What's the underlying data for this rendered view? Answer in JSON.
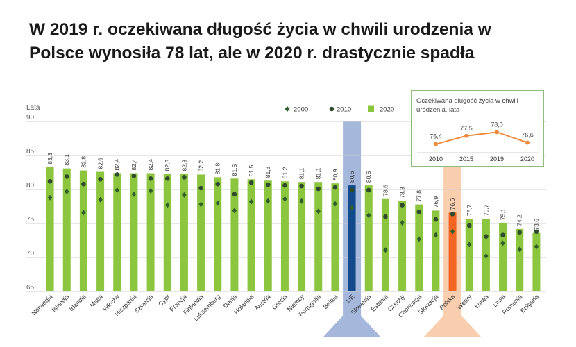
{
  "headline": {
    "line1": "W 2019 r. oczekiwana długość życia w chwili urodzenia w",
    "line2": "Polsce wynosiła 78 lat, ale w 2020 r. drastycznie spadła"
  },
  "colors": {
    "bar": "#8cc63f",
    "bar_eu": "#124a8c",
    "bar_pl": "#f26522",
    "band_eu": "#9bb0d8",
    "band_pl": "#f8c9a6",
    "marker_2000": "#2e5e2a",
    "marker_2010": "#2f4a2c",
    "inset_line": "#f08a3c",
    "inset_border": "#6aa84f"
  },
  "chart_data": [
    {
      "type": "bar",
      "ylabel": "Lata",
      "ylim": [
        65,
        90
      ],
      "yticks": [
        65,
        70,
        75,
        80,
        85,
        90
      ],
      "grid": true,
      "legend": {
        "position": "top-right",
        "items": [
          {
            "label": "2000",
            "marker": "diamond"
          },
          {
            "label": "2010",
            "marker": "circle"
          },
          {
            "label": "2020",
            "marker": "square"
          }
        ]
      },
      "categories": [
        "Norwegia",
        "Islandia",
        "Irlandia",
        "Malta",
        "Włochy",
        "Hiszpania",
        "Szwecja",
        "Cypr",
        "Francja",
        "Finlandia",
        "Luksemburg",
        "Dania",
        "Holandia",
        "Austria",
        "Grecja",
        "Niemcy",
        "Portugalia",
        "Belgia",
        "UE",
        "Słowenia",
        "Estonia",
        "Czechy",
        "Chorwacja",
        "Słowacja",
        "Polska",
        "Węgry",
        "Łotwa",
        "Litwa",
        "Rumunia",
        "Bułgaria"
      ],
      "value_labels": [
        "83,3",
        "83,1",
        "82,8",
        "82,6",
        "82,4",
        "82,4",
        "82,4",
        "82,3",
        "82,3",
        "82,2",
        "81,8",
        "81,6",
        "81,5",
        "81,3",
        "81,2",
        "81,1",
        "81,1",
        "80,9",
        "80,6",
        "80,6",
        "78,6",
        "78,3",
        "77,8",
        "76,9",
        "76,6",
        "75,7",
        "75,7",
        "75,1",
        "74,2",
        "73,6"
      ],
      "series": [
        {
          "name": "2020",
          "marker": "bar",
          "values": [
            83.3,
            83.1,
            82.8,
            82.6,
            82.4,
            82.4,
            82.4,
            82.3,
            82.3,
            82.2,
            81.8,
            81.6,
            81.5,
            81.3,
            81.2,
            81.1,
            81.1,
            80.9,
            80.6,
            80.6,
            78.6,
            78.3,
            77.8,
            76.9,
            76.6,
            75.7,
            75.7,
            75.1,
            74.2,
            73.6
          ]
        },
        {
          "name": "2010",
          "marker": "circle",
          "values": [
            81.2,
            81.9,
            80.8,
            81.5,
            82.2,
            82.0,
            81.6,
            81.6,
            81.8,
            80.2,
            80.8,
            79.3,
            81.0,
            80.7,
            80.6,
            80.5,
            80.1,
            80.3,
            79.9,
            79.9,
            76.0,
            77.7,
            76.7,
            75.6,
            76.4,
            74.7,
            73.1,
            73.3,
            73.7,
            73.8
          ]
        },
        {
          "name": "2000",
          "marker": "diamond",
          "values": [
            78.8,
            79.7,
            76.6,
            78.5,
            79.9,
            79.3,
            79.8,
            77.7,
            79.2,
            77.8,
            78.0,
            76.9,
            78.2,
            78.3,
            78.6,
            78.3,
            76.8,
            77.9,
            77.3,
            76.2,
            71.1,
            75.1,
            72.7,
            73.3,
            73.8,
            71.9,
            70.2,
            72.1,
            71.2,
            71.6
          ]
        }
      ]
    },
    {
      "type": "line",
      "title": "Oczekiwana długość życia w chwili urodzenia, lata",
      "title_lines": [
        "Oczekiwana długość życia w chwili",
        "urodzenia, lata"
      ],
      "x": [
        "2010",
        "2015",
        "2019",
        "2020"
      ],
      "values": [
        76.4,
        77.5,
        78.0,
        76.6
      ],
      "value_labels": [
        "76,4",
        "77,5",
        "78,0",
        "76,6"
      ],
      "ylim": [
        70,
        82
      ]
    }
  ]
}
